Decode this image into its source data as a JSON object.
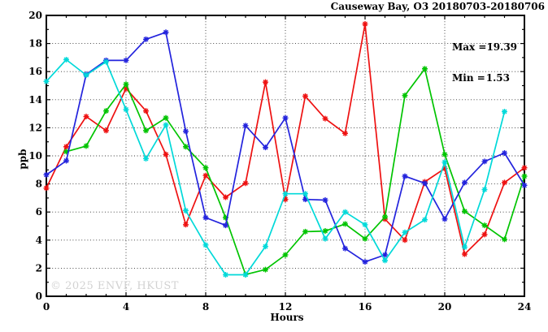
{
  "header": {
    "title": "Causeway Bay, O3 20180703-20180706"
  },
  "stats": {
    "max_label": "Max =",
    "max_value": "19.39",
    "min_label": "Min =",
    "min_value": "1.53"
  },
  "watermark": "© 2025 ENVF, HKUST",
  "chart_data": {
    "type": "line",
    "title": "Causeway Bay, O3 20180703-20180706",
    "xlabel": "Hours",
    "ylabel": "ppb",
    "xlim": [
      0,
      24
    ],
    "ylim": [
      0,
      20
    ],
    "x_major_ticks": [
      0,
      4,
      8,
      12,
      16,
      20,
      24
    ],
    "x_minor_step": 1,
    "y_major_ticks": [
      0,
      2,
      4,
      6,
      8,
      10,
      12,
      14,
      16,
      18,
      20
    ],
    "y_minor_step": 1,
    "grid": "dotted at major ticks",
    "legend": "none",
    "marker": "asterisk",
    "annotations": [
      "Max = 19.39",
      "Min = 1.53"
    ],
    "series": [
      {
        "name": "red",
        "color": "#ee1111",
        "x": [
          0,
          1,
          2,
          3,
          4,
          5,
          6,
          7,
          8,
          9,
          10,
          11,
          12,
          13,
          14,
          15,
          16,
          17,
          18,
          19,
          20,
          21,
          22,
          23,
          24
        ],
        "values": [
          7.7,
          10.65,
          12.8,
          11.8,
          14.8,
          13.2,
          10.1,
          5.1,
          8.6,
          7.05,
          8.05,
          15.25,
          6.9,
          14.25,
          12.65,
          11.6,
          19.39,
          5.5,
          4.0,
          8.15,
          9.1,
          3.0,
          4.4,
          8.1,
          9.15
        ]
      },
      {
        "name": "green",
        "color": "#00c400",
        "x": [
          1,
          2,
          3,
          4,
          5,
          6,
          7,
          8,
          9,
          10,
          11,
          12,
          13,
          14,
          15,
          16,
          17,
          18,
          19,
          20,
          21,
          22,
          23,
          24
        ],
        "values": [
          10.3,
          10.7,
          13.2,
          15.1,
          11.8,
          12.7,
          10.65,
          9.15,
          5.6,
          1.55,
          1.9,
          2.95,
          4.6,
          4.65,
          5.15,
          4.1,
          5.65,
          14.3,
          16.2,
          10.1,
          6.05,
          5.05,
          4.05,
          8.55
        ]
      },
      {
        "name": "blue",
        "color": "#2323dd",
        "x": [
          0,
          1,
          2,
          3,
          4,
          5,
          6,
          7,
          8,
          9,
          10,
          11,
          12,
          13,
          14,
          15,
          16,
          17,
          18,
          19,
          20,
          21,
          22,
          23,
          24
        ],
        "values": [
          8.65,
          9.65,
          15.8,
          16.8,
          16.8,
          18.3,
          18.8,
          11.75,
          5.6,
          5.05,
          12.15,
          10.6,
          12.7,
          6.9,
          6.85,
          3.4,
          2.45,
          2.95,
          8.55,
          8.05,
          5.5,
          8.1,
          9.6,
          10.2,
          7.9
        ]
      },
      {
        "name": "cyan",
        "color": "#00d9d9",
        "x": [
          0,
          1,
          2,
          3,
          4,
          5,
          6,
          7,
          8,
          9,
          10,
          11,
          12,
          13,
          14,
          15,
          16,
          17,
          18,
          19,
          20,
          21,
          22,
          23
        ],
        "values": [
          15.3,
          16.85,
          15.75,
          16.7,
          13.3,
          9.8,
          12.2,
          6.1,
          3.65,
          1.53,
          1.53,
          3.55,
          7.3,
          7.3,
          4.1,
          6.0,
          5.1,
          2.55,
          4.55,
          5.45,
          9.55,
          3.5,
          7.6,
          13.15
        ]
      }
    ]
  }
}
